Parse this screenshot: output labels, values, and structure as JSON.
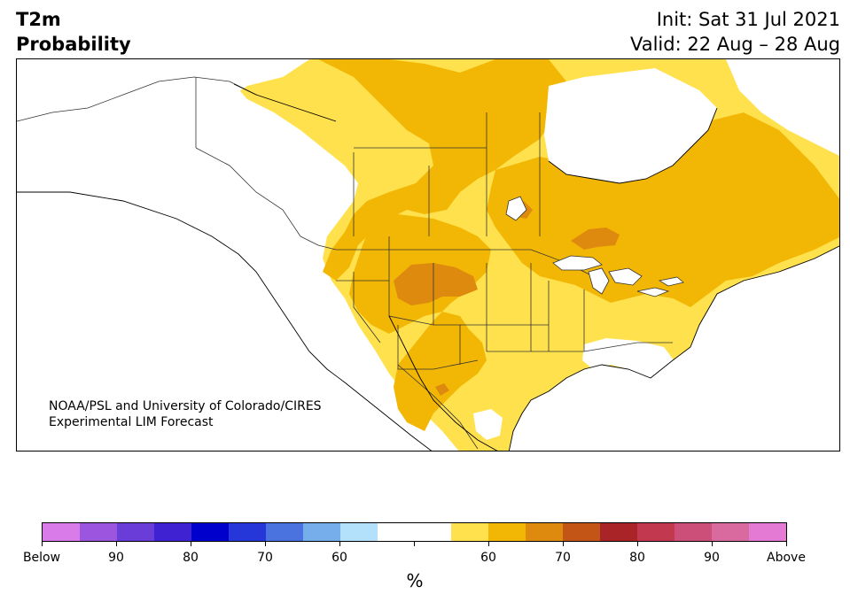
{
  "title": {
    "line1": "T2m",
    "line2": "Probability"
  },
  "init": {
    "line1": "Init: Sat 31 Jul 2021",
    "line2": "Valid: 22 Aug – 28 Aug"
  },
  "credit": {
    "line1": "NOAA/PSL and University of Colorado/CIRES",
    "line2": "Experimental LIM Forecast"
  },
  "colorbar": {
    "colors": [
      "#d97be8",
      "#9b55de",
      "#6a3cd8",
      "#3f22d2",
      "#0000cc",
      "#2537d8",
      "#4b73e0",
      "#76aeec",
      "#b3e0fa",
      "#ffffff",
      "#ffffff",
      "#ffe14d",
      "#f2b705",
      "#de8a0e",
      "#c35517",
      "#a92426",
      "#c2384f",
      "#cc4f7a",
      "#d96a9f",
      "#e57ad4"
    ],
    "tick_labels": [
      "Below",
      "90",
      "80",
      "70",
      "60",
      "",
      "60",
      "70",
      "80",
      "90",
      "Above"
    ],
    "unit": "%"
  },
  "map": {
    "land": "#ffffff",
    "categories": {
      "above_55": "#ffe14d",
      "above_60": "#f2b705",
      "above_70": "#de8a0e"
    }
  }
}
